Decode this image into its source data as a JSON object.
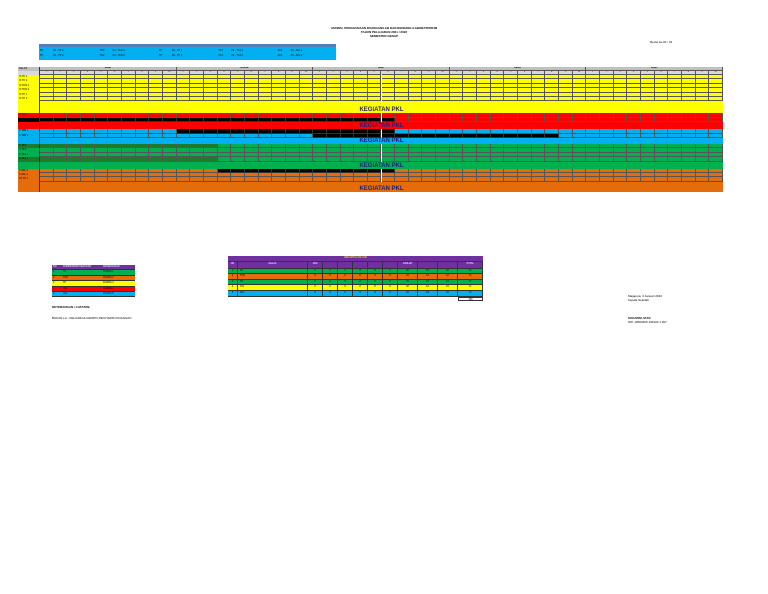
{
  "header": {
    "title1": "JADWAL PENGGUNAAN RUANGAN/LAB DAN BENGKEL/LABORATORIUM",
    "title2": "TAHUN PELAJARAN 2021 / 2022",
    "title3": "SEMESTER GENAP",
    "ref": "Revisi ke-01 / 01"
  },
  "legend_top": {
    "rows": [
      [
        "XII - TK 1",
        "XII - TKR 1",
        "XII - TP 1",
        "XII - TKJ 1",
        "XII - AKL 1"
      ],
      [
        "XII - TK 2",
        "XII - TKR 2",
        "XII - TP 2",
        "XII - TKJ 2",
        "XII - AKL 2"
      ]
    ],
    "codes": [
      "TK",
      "TKR",
      "TP",
      "TKJ",
      "AKL"
    ]
  },
  "grid": {
    "header_label": "KELAS",
    "days": [
      "SENIN",
      "SELASA",
      "RABU",
      "KAMIS",
      "JUMAT"
    ],
    "periods": [
      "1",
      "2",
      "3",
      "4",
      "5",
      "6",
      "7",
      "8",
      "9",
      "10"
    ],
    "row_labels": [
      "XI TK 1",
      "XI TK 2",
      "XI TKR 1",
      "XI TKR 2",
      "XI TP 1",
      "XI TP 2",
      "X TK 1",
      "X TK 2",
      "X TKR 1",
      "X TKR 2",
      "X TP 1",
      "X TP 2",
      "X TKJ 1",
      "X TKJ 2",
      "X AKL 1",
      "X AKL 2",
      "XII TK 1",
      "XII TK 2",
      "XII TKR 1",
      "XII TKR 2",
      "XII TP 1"
    ],
    "banner": "KEGIATAN PKL",
    "colors": {
      "yellow": "#ffff00",
      "red": "#ff0000",
      "black": "#000000",
      "blue": "#00b0f0",
      "green": "#00b050",
      "darkgreen": "#1e7b2c",
      "orange": "#e46c0a",
      "lightgreen": "#92d050"
    }
  },
  "bottom_legend": {
    "headers": [
      "NO",
      "KOMPETENSI KEAHLIAN",
      "KETERANGAN"
    ],
    "rows": [
      {
        "no": "1",
        "kk": "TK",
        "ket": "RUANG 1"
      },
      {
        "no": "2",
        "kk": "TKR",
        "ket": "RUANG 2"
      },
      {
        "no": "3",
        "kk": "TP",
        "ket": "RUANG 3"
      },
      {
        "no": "4",
        "kk": "TKJ",
        "ket": "RUANG 4"
      },
      {
        "no": "5",
        "kk": "AKL",
        "ket": "RUANG 5"
      }
    ]
  },
  "bottom_table": {
    "title": "REKAPITULASI JAM",
    "headers": [
      "NO",
      "KELAS",
      "JAM",
      "",
      "",
      "",
      "",
      "",
      "JUMLAH",
      "",
      "",
      "TOTAL"
    ],
    "rows": [
      {
        "no": "1",
        "kelas": "TK",
        "v": [
          "8",
          "8",
          "8",
          "8",
          "8",
          "8",
          "40",
          "16",
          "16",
          "72"
        ]
      },
      {
        "no": "2",
        "kelas": "TKR",
        "v": [
          "8",
          "8",
          "8",
          "8",
          "8",
          "8",
          "40",
          "16",
          "16",
          "72"
        ]
      },
      {
        "no": "3",
        "kelas": "TP",
        "v": [
          "8",
          "8",
          "8",
          "8",
          "8",
          "8",
          "40",
          "16",
          "16",
          "72"
        ]
      },
      {
        "no": "4",
        "kelas": "TKJ",
        "v": [
          "8",
          "8",
          "8",
          "8",
          "8",
          "8",
          "40",
          "16",
          "16",
          "72"
        ]
      },
      {
        "no": "5",
        "kelas": "AKL",
        "v": [
          "8",
          "8",
          "8",
          "8",
          "8",
          "8",
          "40",
          "16",
          "16",
          "72"
        ]
      }
    ],
    "total": "360"
  },
  "footer": {
    "note1": "KETERANGAN / CATATAN:",
    "note2": "BUKAN LA - KELUARGA DARIPO PENYIAPAN RUANGAN",
    "place_date": "Majapura, 3 Januari 2022",
    "role": "Kepala Sekolah",
    "name": "SUHARNI, M.Pd",
    "nip": "NIP. 19660405 199103 1 007"
  }
}
